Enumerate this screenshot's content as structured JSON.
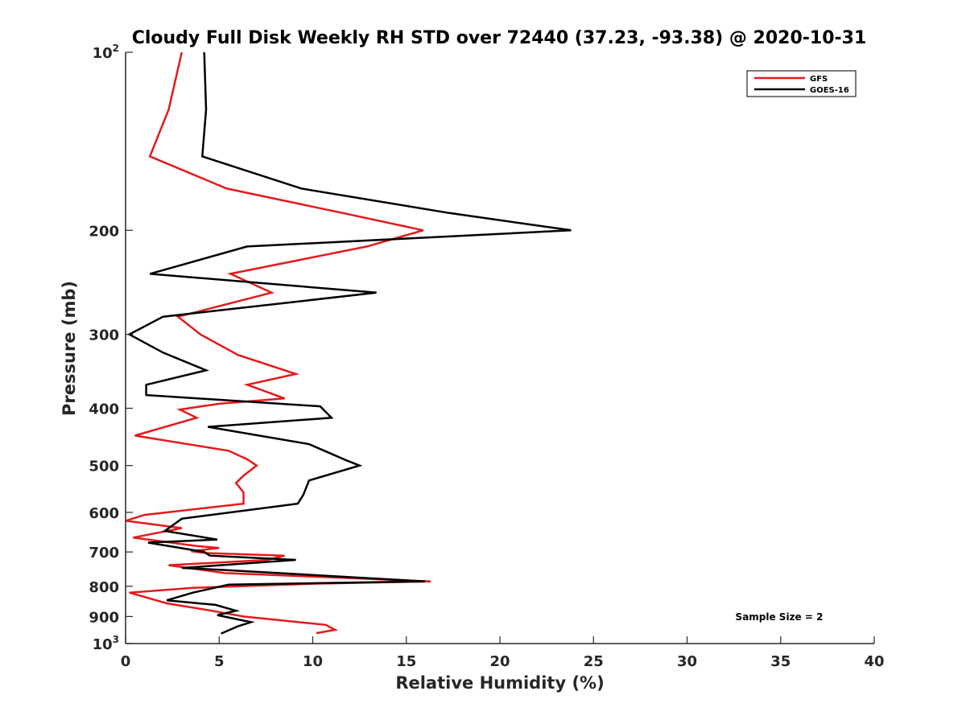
{
  "chart_data": {
    "type": "line",
    "title": "Cloudy Full Disk Weekly RH STD over 72440 (37.23, -93.38) @ 2020-10-31",
    "xlabel": "Relative Humidity (%)",
    "ylabel": "Pressure (mb)",
    "xlim": [
      0,
      40
    ],
    "ylim": [
      100,
      1000
    ],
    "y_scale": "log",
    "y_reversed": true,
    "x_ticks": [
      0,
      5,
      10,
      15,
      20,
      25,
      30,
      35,
      40
    ],
    "y_ticks": [
      {
        "value": 100,
        "base": "10",
        "exp": "2"
      },
      {
        "value": 200,
        "label": "200"
      },
      {
        "value": 300,
        "label": "300"
      },
      {
        "value": 400,
        "label": "400"
      },
      {
        "value": 500,
        "label": "500"
      },
      {
        "value": 600,
        "label": "600"
      },
      {
        "value": 700,
        "label": "700"
      },
      {
        "value": 800,
        "label": "800"
      },
      {
        "value": 900,
        "label": "900"
      },
      {
        "value": 1000,
        "base": "10",
        "exp": "3"
      }
    ],
    "grid": false,
    "legend_position": "top-right",
    "annotation": "Sample Size = 2",
    "series": [
      {
        "name": "GFS",
        "color": "#e41a1c",
        "points": [
          [
            3.0,
            100
          ],
          [
            2.3,
            125
          ],
          [
            1.3,
            150
          ],
          [
            5.4,
            170
          ],
          [
            11.6,
            187
          ],
          [
            15.9,
            200
          ],
          [
            12.9,
            213
          ],
          [
            5.6,
            237
          ],
          [
            7.8,
            255
          ],
          [
            2.8,
            280
          ],
          [
            4.0,
            300
          ],
          [
            6.0,
            325
          ],
          [
            9.1,
            350
          ],
          [
            6.5,
            365
          ],
          [
            8.5,
            385
          ],
          [
            5.0,
            393
          ],
          [
            2.9,
            402
          ],
          [
            3.8,
            415
          ],
          [
            0.5,
            445
          ],
          [
            5.5,
            472
          ],
          [
            6.5,
            488
          ],
          [
            7.0,
            500
          ],
          [
            6.3,
            520
          ],
          [
            5.9,
            535
          ],
          [
            6.3,
            555
          ],
          [
            6.3,
            580
          ],
          [
            1.0,
            606
          ],
          [
            0.0,
            620
          ],
          [
            3.0,
            638
          ],
          [
            0.4,
            662
          ],
          [
            3.8,
            684
          ],
          [
            5.0,
            689
          ],
          [
            3.5,
            698
          ],
          [
            4.3,
            703
          ],
          [
            8.5,
            710
          ],
          [
            7.6,
            722
          ],
          [
            2.3,
            737
          ],
          [
            5.3,
            760
          ],
          [
            16.3,
            785
          ],
          [
            10.0,
            792
          ],
          [
            3.6,
            805
          ],
          [
            0.2,
            820
          ],
          [
            2.2,
            855
          ],
          [
            4.6,
            880
          ],
          [
            6.3,
            900
          ],
          [
            10.7,
            930
          ],
          [
            11.2,
            948
          ],
          [
            10.2,
            960
          ]
        ]
      },
      {
        "name": "GOES-16",
        "color": "#000000",
        "points": [
          [
            4.2,
            100
          ],
          [
            4.3,
            125
          ],
          [
            4.1,
            150
          ],
          [
            9.4,
            170
          ],
          [
            17.3,
            187
          ],
          [
            23.8,
            200
          ],
          [
            6.5,
            213
          ],
          [
            1.3,
            237
          ],
          [
            13.4,
            255
          ],
          [
            2.0,
            280
          ],
          [
            0.2,
            300
          ],
          [
            2.0,
            322
          ],
          [
            4.3,
            345
          ],
          [
            1.1,
            365
          ],
          [
            1.1,
            380
          ],
          [
            10.4,
            397
          ],
          [
            11.0,
            415
          ],
          [
            4.4,
            430
          ],
          [
            9.8,
            460
          ],
          [
            11.8,
            490
          ],
          [
            12.5,
            500
          ],
          [
            9.8,
            530
          ],
          [
            9.5,
            560
          ],
          [
            9.2,
            580
          ],
          [
            3.0,
            615
          ],
          [
            2.1,
            645
          ],
          [
            4.9,
            667
          ],
          [
            1.2,
            675
          ],
          [
            4.2,
            700
          ],
          [
            4.5,
            710
          ],
          [
            9.1,
            722
          ],
          [
            3.0,
            745
          ],
          [
            5.0,
            750
          ],
          [
            16.0,
            785
          ],
          [
            5.5,
            795
          ],
          [
            3.6,
            820
          ],
          [
            2.2,
            845
          ],
          [
            4.8,
            860
          ],
          [
            5.9,
            880
          ],
          [
            4.9,
            895
          ],
          [
            6.7,
            920
          ],
          [
            6.0,
            935
          ],
          [
            5.1,
            962
          ]
        ]
      }
    ]
  }
}
